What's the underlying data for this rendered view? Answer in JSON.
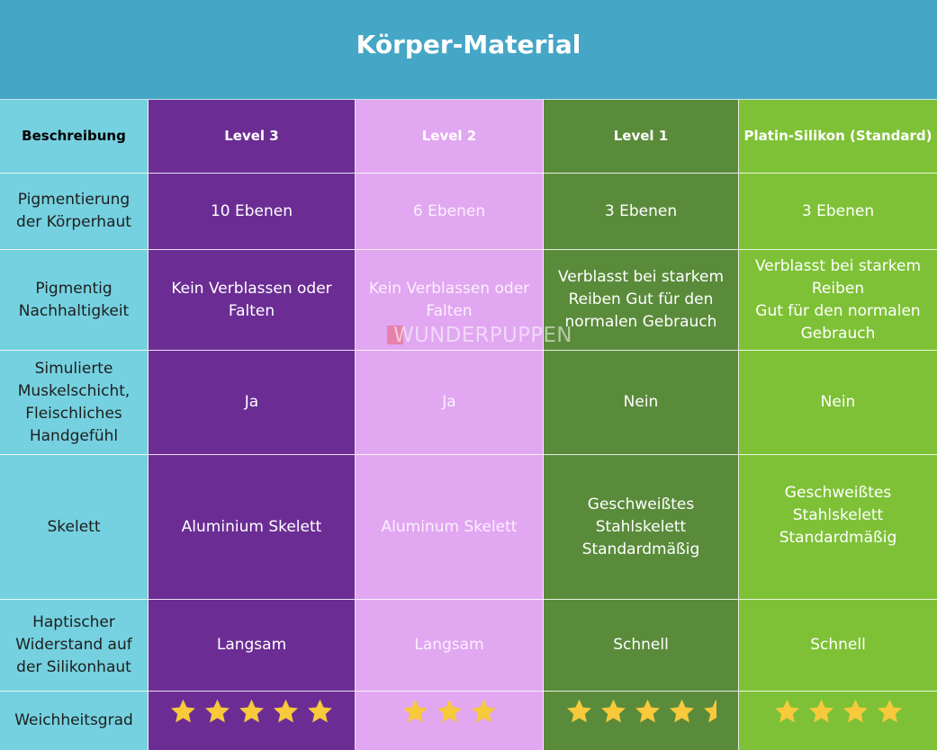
{
  "title": "Körper-Material",
  "table": {
    "headers": [
      "Beschreibung",
      "Level 3",
      "Level 2",
      "Level 1",
      "Platin-Silikon (Standard)"
    ],
    "rows": [
      {
        "label": "Pigmentierung\nder Körperhaut",
        "cells": [
          "10 Ebenen",
          "6 Ebenen",
          "3 Ebenen",
          "3 Ebenen"
        ]
      },
      {
        "label": "Pigmentig\nNachhaltigkeit",
        "cells": [
          "Kein Verblassen oder\nFalten",
          "Kein Verblassen oder\nFalten",
          "Verblasst bei starkem\nReiben Gut für den\nnormalen Gebrauch",
          "Verblasst bei starkem\nReiben\nGut für den normalen\nGebrauch"
        ]
      },
      {
        "label": "Simulierte\nMuskelschicht,\nFleischliches\nHandgefühl",
        "cells": [
          "Ja",
          "Ja",
          "Nein",
          "Nein"
        ]
      },
      {
        "label": "Skelett",
        "cells": [
          "Aluminium Skelett",
          "Aluminum Skelett",
          "Geschweißtes\nStahlskelett\nStandardmäßig",
          "Geschweißtes\nStahlskelett\nStandardmäßig"
        ]
      },
      {
        "label": "Haptischer\nWiderstand auf\nder Silikonhaut",
        "cells": [
          "Langsam",
          "Langsam",
          "Schnell",
          "Schnell"
        ]
      },
      {
        "label": "Weichheitsgrad",
        "ratings": [
          5,
          3,
          4.5,
          4
        ]
      }
    ]
  },
  "watermark": "WUNDERPUPPEN",
  "icons": {
    "rating_full": "star-icon",
    "rating_half": "half-star-icon",
    "watermark_logo": "wunderpuppen-logo-icon"
  },
  "colors": {
    "title_bar": "#45a6c6",
    "label_column": "#75d1e0",
    "level_3": "#6b2d94",
    "level_2": "#e1a7f1",
    "level_1": "#5a8b3b",
    "platin": "#7ec137",
    "star": "#f7c93b",
    "title_text": "#ffffff",
    "label_text": "#1e1e1e"
  }
}
